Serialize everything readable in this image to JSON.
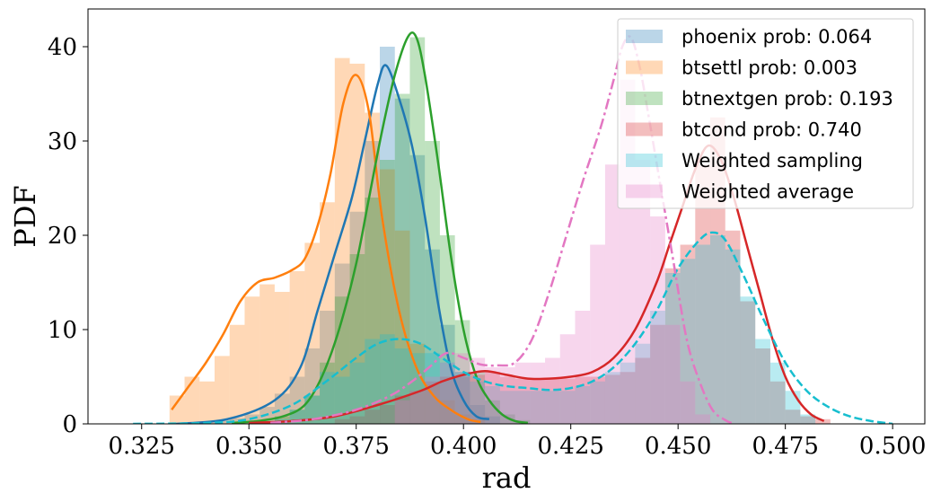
{
  "chart_data": {
    "type": "area",
    "xlabel": "rad",
    "ylabel": "PDF",
    "xlim": [
      0.3125,
      0.5075
    ],
    "ylim": [
      0,
      44
    ],
    "xticks": [
      0.325,
      0.35,
      0.375,
      0.4,
      0.425,
      0.45,
      0.475,
      0.5
    ],
    "xtick_labels": [
      "0.325",
      "0.350",
      "0.375",
      "0.400",
      "0.425",
      "0.450",
      "0.475",
      "0.500"
    ],
    "yticks": [
      0,
      10,
      20,
      30,
      40
    ],
    "ytick_labels": [
      "0",
      "10",
      "20",
      "30",
      "40"
    ],
    "legend_position": "top-right",
    "grid": false,
    "legend": [
      {
        "label": "phoenix prob: 0.064",
        "color": "#1f77b4"
      },
      {
        "label": "btsettl prob: 0.003",
        "color": "#ff7f0e"
      },
      {
        "label": "btnextgen prob: 0.193",
        "color": "#2ca02c"
      },
      {
        "label": "btcond prob: 0.740",
        "color": "#d62728"
      },
      {
        "label": "Weighted sampling",
        "color": "#17becf"
      },
      {
        "label": "Weighted average",
        "color": "#e377c2"
      }
    ],
    "histograms": [
      {
        "series": "phoenix prob: 0.064",
        "color": "#1f77b4",
        "alpha": 0.3,
        "bin_width": 0.0035,
        "x": [
          0.3385,
          0.342,
          0.3455,
          0.349,
          0.3525,
          0.356,
          0.3595,
          0.363,
          0.3665,
          0.37,
          0.3735,
          0.377,
          0.3805,
          0.384,
          0.3875,
          0.391,
          0.3945,
          0.398,
          0.4015,
          0.405
        ],
        "values": [
          0.1,
          0.3,
          0.6,
          1.0,
          1.8,
          3.2,
          5.0,
          8.0,
          12.0,
          17.0,
          22.5,
          30.0,
          40.0,
          34.5,
          28.5,
          18.5,
          10.5,
          5.5,
          2.0,
          0.8
        ]
      },
      {
        "series": "btsettl prob: 0.003",
        "color": "#ff7f0e",
        "alpha": 0.3,
        "bin_width": 0.0035,
        "x": [
          0.3315,
          0.335,
          0.3385,
          0.342,
          0.3455,
          0.349,
          0.3525,
          0.356,
          0.3595,
          0.363,
          0.3665,
          0.37,
          0.3735,
          0.377,
          0.3805,
          0.384,
          0.3875,
          0.391,
          0.3945,
          0.398,
          0.4015
        ],
        "values": [
          3.0,
          5.0,
          4.5,
          7.2,
          10.5,
          13.5,
          14.8,
          14.0,
          16.2,
          19.2,
          23.5,
          38.8,
          38.2,
          33.0,
          27.0,
          20.5,
          8.5,
          4.2,
          2.5,
          1.0,
          0.5
        ]
      },
      {
        "series": "btnextgen prob: 0.193",
        "color": "#2ca02c",
        "alpha": 0.3,
        "bin_width": 0.0035,
        "x": [
          0.3525,
          0.356,
          0.3595,
          0.363,
          0.3665,
          0.37,
          0.3735,
          0.377,
          0.3805,
          0.384,
          0.3875,
          0.391,
          0.3945,
          0.398,
          0.4015,
          0.405,
          0.4085,
          0.412
        ],
        "values": [
          0.3,
          0.8,
          1.5,
          3.0,
          6.5,
          13.5,
          18.0,
          24.0,
          28.0,
          35.0,
          41.0,
          30.0,
          20.0,
          11.0,
          5.5,
          2.5,
          1.0,
          0.4
        ]
      },
      {
        "series": "btcond prob: 0.740",
        "color": "#d62728",
        "alpha": 0.3,
        "bin_width": 0.0035,
        "x": [
          0.37,
          0.3735,
          0.377,
          0.3805,
          0.384,
          0.3875,
          0.391,
          0.3945,
          0.398,
          0.4015,
          0.405,
          0.4085,
          0.412,
          0.4155,
          0.419,
          0.4225,
          0.426,
          0.4295,
          0.433,
          0.4365,
          0.44,
          0.4435,
          0.447,
          0.4505,
          0.454,
          0.4575,
          0.461,
          0.4645,
          0.468,
          0.4715,
          0.475,
          0.4785,
          0.482
        ],
        "values": [
          0.5,
          0.8,
          1.5,
          2.0,
          3.0,
          3.5,
          4.5,
          5.0,
          5.0,
          5.2,
          5.5,
          5.0,
          4.8,
          4.8,
          4.8,
          4.8,
          5.0,
          5.0,
          5.2,
          5.5,
          7.0,
          10.5,
          16.5,
          19.0,
          27.5,
          32.5,
          20.5,
          13.0,
          8.0,
          4.5,
          1.5,
          0.8,
          0.5
        ]
      },
      {
        "series": "Weighted sampling",
        "color": "#17becf",
        "alpha": 0.3,
        "bin_width": 0.0035,
        "x": [
          0.356,
          0.3595,
          0.363,
          0.3665,
          0.37,
          0.3735,
          0.377,
          0.3805,
          0.384,
          0.3875,
          0.391,
          0.3945,
          0.398,
          0.4015,
          0.405,
          0.4085,
          0.412,
          0.4155,
          0.419,
          0.4225,
          0.426,
          0.4295,
          0.433,
          0.4365,
          0.44,
          0.4435,
          0.447,
          0.4505,
          0.454,
          0.4575,
          0.461,
          0.4645,
          0.468,
          0.4715,
          0.475,
          0.4785
        ],
        "values": [
          0.5,
          1.5,
          3.0,
          5.5,
          5.0,
          6.5,
          9.0,
          9.5,
          8.0,
          7.5,
          7.5,
          6.5,
          5.5,
          4.5,
          4.0,
          3.5,
          3.5,
          3.5,
          3.5,
          3.5,
          4.0,
          4.5,
          5.5,
          6.5,
          8.5,
          12.0,
          16.0,
          17.5,
          19.0,
          20.0,
          18.5,
          13.5,
          9.0,
          6.5,
          3.5,
          1.0
        ]
      },
      {
        "series": "Weighted average",
        "color": "#e377c2",
        "alpha": 0.3,
        "bin_width": 0.0035,
        "x": [
          0.384,
          0.3875,
          0.391,
          0.3945,
          0.398,
          0.4015,
          0.405,
          0.4085,
          0.412,
          0.4155,
          0.419,
          0.4225,
          0.426,
          0.4295,
          0.433,
          0.4365,
          0.44,
          0.4435,
          0.447,
          0.4505,
          0.454
        ],
        "values": [
          2.5,
          3.5,
          5.0,
          6.5,
          7.5,
          7.0,
          6.0,
          6.0,
          6.5,
          6.5,
          7.0,
          9.5,
          12.0,
          19.0,
          27.5,
          36.5,
          28.0,
          22.0,
          10.5,
          4.5,
          1.0
        ]
      }
    ],
    "curves": [
      {
        "series": "phoenix prob: 0.064",
        "color": "#1f77b4",
        "dash": "solid",
        "x": [
          0.333,
          0.345,
          0.356,
          0.362,
          0.366,
          0.37,
          0.374,
          0.377,
          0.38,
          0.382,
          0.385,
          0.388,
          0.391,
          0.394,
          0.397,
          0.4,
          0.403,
          0.406
        ],
        "y": [
          0,
          0.5,
          2.5,
          6,
          12,
          18,
          24,
          30,
          36,
          38,
          34.5,
          29.5,
          22,
          13,
          6,
          2.5,
          0.8,
          0.5
        ]
      },
      {
        "series": "btsettl prob: 0.003",
        "color": "#ff7f0e",
        "dash": "solid",
        "x": [
          0.332,
          0.336,
          0.34,
          0.344,
          0.348,
          0.352,
          0.356,
          0.36,
          0.363,
          0.366,
          0.369,
          0.372,
          0.375,
          0.378,
          0.381,
          0.385,
          0.389,
          0.393,
          0.397,
          0.401,
          0.404
        ],
        "y": [
          1.5,
          4,
          6.5,
          9.5,
          13,
          15,
          15.5,
          16.3,
          17.5,
          21,
          26.5,
          34,
          37,
          33,
          22,
          12,
          6,
          3,
          1.5,
          0.5,
          0.2
        ]
      },
      {
        "series": "btnextgen prob: 0.193",
        "color": "#2ca02c",
        "dash": "solid",
        "x": [
          0.346,
          0.352,
          0.358,
          0.363,
          0.367,
          0.371,
          0.375,
          0.378,
          0.381,
          0.384,
          0.387,
          0.389,
          0.391,
          0.394,
          0.397,
          0.4,
          0.403,
          0.406,
          0.409,
          0.412,
          0.415
        ],
        "y": [
          0.1,
          0.3,
          0.8,
          2,
          5,
          10,
          17,
          24,
          31,
          37,
          41,
          41,
          37,
          28,
          18,
          10,
          5,
          2.5,
          1,
          0.3,
          0.1
        ]
      },
      {
        "series": "btcond prob: 0.740",
        "color": "#d62728",
        "dash": "solid",
        "x": [
          0.35,
          0.36,
          0.37,
          0.38,
          0.39,
          0.395,
          0.4,
          0.405,
          0.41,
          0.415,
          0.42,
          0.425,
          0.43,
          0.435,
          0.44,
          0.445,
          0.448,
          0.451,
          0.454,
          0.457,
          0.46,
          0.463,
          0.466,
          0.469,
          0.472,
          0.475,
          0.478,
          0.481,
          0.484
        ],
        "y": [
          0.1,
          0.3,
          0.8,
          2,
          3.5,
          4.5,
          5.2,
          5.6,
          5.2,
          4.8,
          4.8,
          5.0,
          5.5,
          7,
          10,
          15,
          19,
          23,
          27,
          29.5,
          28,
          24,
          19,
          14,
          9,
          5,
          2.5,
          1,
          0.3
        ]
      },
      {
        "series": "Weighted sampling",
        "color": "#17becf",
        "dash": "dashed",
        "x": [
          0.323,
          0.34,
          0.35,
          0.36,
          0.368,
          0.375,
          0.38,
          0.385,
          0.39,
          0.395,
          0.4,
          0.405,
          0.41,
          0.415,
          0.42,
          0.425,
          0.43,
          0.435,
          0.44,
          0.445,
          0.45,
          0.455,
          0.458,
          0.461,
          0.465,
          0.47,
          0.475,
          0.48,
          0.485,
          0.49,
          0.495,
          0.5
        ],
        "y": [
          0,
          0.1,
          0.5,
          2,
          4.5,
          7,
          8.5,
          9,
          8.5,
          7,
          5.5,
          4.5,
          4,
          3.8,
          3.6,
          3.8,
          4.5,
          6,
          8.5,
          12,
          16.5,
          19.5,
          20.3,
          19.5,
          16,
          11,
          6.5,
          3.5,
          1.8,
          0.8,
          0.3,
          0
        ]
      },
      {
        "series": "Weighted average",
        "color": "#e377c2",
        "dash": "dashdot",
        "x": [
          0.355,
          0.365,
          0.375,
          0.383,
          0.388,
          0.392,
          0.396,
          0.4,
          0.404,
          0.408,
          0.412,
          0.416,
          0.42,
          0.424,
          0.428,
          0.432,
          0.435,
          0.437,
          0.439,
          0.441,
          0.443,
          0.446,
          0.449,
          0.452,
          0.455,
          0.458,
          0.461,
          0.463
        ],
        "y": [
          0.1,
          0.5,
          1.5,
          3,
          4.5,
          6,
          7.5,
          7,
          6.3,
          6.2,
          6.5,
          9,
          14,
          20,
          26,
          31.5,
          36.5,
          40,
          41,
          38,
          33,
          25,
          17,
          9,
          4.5,
          1.5,
          0.4,
          0
        ]
      }
    ]
  }
}
